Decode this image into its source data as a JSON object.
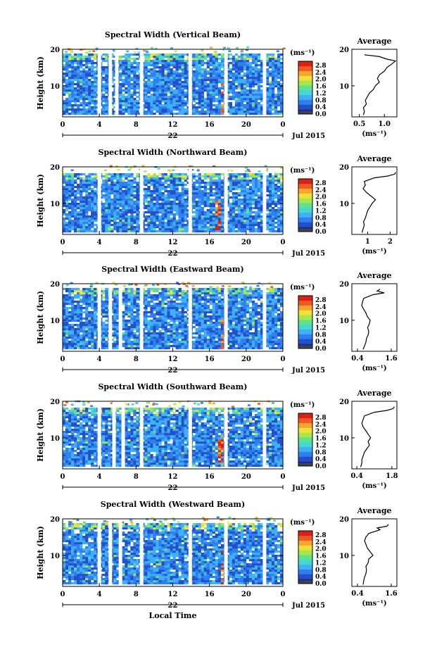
{
  "chart_data": [
    {
      "type": "heatmap",
      "title": "Spectral Width (Vertical Beam)",
      "ylabel": "Height (km)",
      "x_ticks": [
        "0",
        "4",
        "8",
        "12",
        "16",
        "20",
        "0"
      ],
      "y_ticks": [
        "10",
        "20"
      ],
      "xlim": [
        0,
        24
      ],
      "ylim": [
        1.5,
        20
      ],
      "date_center": "22",
      "date_right": "Jul 2015",
      "colorbar": {
        "unit": "(ms⁻¹)",
        "ticks": [
          "2.8",
          "2.4",
          "2.0",
          "1.6",
          "1.2",
          "0.8",
          "0.4",
          "0.0"
        ]
      },
      "gaps_hours": [
        4.0,
        5.2,
        5.9,
        8.6,
        13.9,
        17.8,
        22.0
      ],
      "hot_hours": [
        17.5
      ],
      "top_km": 18.5,
      "average": {
        "title": "Average",
        "xlabel": "(ms⁻¹)",
        "x_ticks": [
          "0.5",
          "1.0"
        ],
        "x_tick_values": [
          0.5,
          1.0
        ],
        "xlim": [
          0.35,
          1.25
        ],
        "y_ticks": [
          "10",
          "20"
        ],
        "profile": [
          [
            2,
            0.58
          ],
          [
            3,
            0.6
          ],
          [
            4,
            0.58
          ],
          [
            5,
            0.64
          ],
          [
            6,
            0.62
          ],
          [
            7,
            0.66
          ],
          [
            8,
            0.7
          ],
          [
            9,
            0.78
          ],
          [
            10,
            0.82
          ],
          [
            11,
            0.9
          ],
          [
            12,
            0.86
          ],
          [
            13,
            0.9
          ],
          [
            14,
            1.0
          ],
          [
            15,
            1.05
          ],
          [
            16,
            1.15
          ],
          [
            16.8,
            1.22
          ],
          [
            17.3,
            1.05
          ],
          [
            18,
            0.9
          ],
          [
            18.5,
            0.6
          ]
        ]
      }
    },
    {
      "type": "heatmap",
      "title": "Spectral Width (Northward Beam)",
      "ylabel": "Height (km)",
      "x_ticks": [
        "0",
        "4",
        "8",
        "12",
        "16",
        "20",
        "0"
      ],
      "y_ticks": [
        "10",
        "20"
      ],
      "xlim": [
        0,
        24
      ],
      "ylim": [
        1.5,
        20
      ],
      "date_center": "22",
      "date_right": "Jul 2015",
      "colorbar": {
        "unit": "(ms⁻¹)",
        "ticks": [
          "2.8",
          "2.4",
          "2.0",
          "1.6",
          "1.2",
          "0.8",
          "0.4",
          "0.0"
        ]
      },
      "gaps_hours": [
        4.0,
        8.6,
        13.9,
        17.8,
        22.0
      ],
      "hot_hours": [
        17.0
      ],
      "top_km": 18.2,
      "average": {
        "title": "Average",
        "xlabel": "(ms⁻¹)",
        "x_ticks": [
          "1",
          "2"
        ],
        "x_tick_values": [
          1,
          2
        ],
        "xlim": [
          0.3,
          2.3
        ],
        "y_ticks": [
          "10",
          "20"
        ],
        "profile": [
          [
            2,
            0.75
          ],
          [
            3,
            0.8
          ],
          [
            4,
            0.85
          ],
          [
            5,
            0.82
          ],
          [
            6,
            0.9
          ],
          [
            7,
            0.95
          ],
          [
            8,
            1.0
          ],
          [
            9,
            1.1
          ],
          [
            10,
            1.2
          ],
          [
            11,
            1.35
          ],
          [
            12,
            1.15
          ],
          [
            13,
            0.95
          ],
          [
            14,
            0.8
          ],
          [
            15,
            0.9
          ],
          [
            16,
            0.85
          ],
          [
            17,
            1.3
          ],
          [
            17.5,
            1.9
          ],
          [
            18,
            2.2
          ],
          [
            18.5,
            2.25
          ]
        ]
      }
    },
    {
      "type": "heatmap",
      "title": "Spectral Width (Eastward Beam)",
      "ylabel": "Height (km)",
      "x_ticks": [
        "0",
        "4",
        "8",
        "12",
        "16",
        "20",
        "0"
      ],
      "y_ticks": [
        "10",
        "20"
      ],
      "xlim": [
        0,
        24
      ],
      "ylim": [
        1.5,
        20
      ],
      "date_center": "22",
      "date_right": "Jul 2015",
      "colorbar": {
        "unit": "(ms⁻¹)",
        "ticks": [
          "2.8",
          "2.4",
          "2.0",
          "1.6",
          "1.2",
          "0.8",
          "0.4",
          "0.0"
        ]
      },
      "gaps_hours": [
        4.0,
        5.2,
        6.3,
        8.6,
        13.9,
        17.8,
        22.0
      ],
      "hot_hours": [
        17.5
      ],
      "top_km": 18.3,
      "average": {
        "title": "Average",
        "xlabel": "(ms⁻¹)",
        "x_ticks": [
          "0.4",
          "1.6"
        ],
        "x_tick_values": [
          0.4,
          1.6
        ],
        "xlim": [
          0.2,
          1.8
        ],
        "y_ticks": [
          "10",
          "20"
        ],
        "profile": [
          [
            2,
            0.6
          ],
          [
            3,
            0.65
          ],
          [
            4,
            0.7
          ],
          [
            5,
            0.72
          ],
          [
            6,
            0.78
          ],
          [
            7,
            0.8
          ],
          [
            8,
            0.76
          ],
          [
            9,
            0.82
          ],
          [
            10,
            0.85
          ],
          [
            11,
            0.75
          ],
          [
            12,
            0.7
          ],
          [
            13,
            0.62
          ],
          [
            14,
            0.55
          ],
          [
            15,
            0.58
          ],
          [
            16,
            0.62
          ],
          [
            17,
            0.95
          ],
          [
            17.5,
            1.35
          ],
          [
            18,
            1.1
          ],
          [
            18.5,
            1.2
          ]
        ]
      }
    },
    {
      "type": "heatmap",
      "title": "Spectral Width (Southward Beam)",
      "ylabel": "Height (km)",
      "x_ticks": [
        "0",
        "4",
        "8",
        "12",
        "16",
        "20",
        "0"
      ],
      "y_ticks": [
        "10",
        "20"
      ],
      "xlim": [
        0,
        24
      ],
      "ylim": [
        1.5,
        20
      ],
      "date_center": "22",
      "date_right": "Jul 2015",
      "colorbar": {
        "unit": "(ms⁻¹)",
        "ticks": [
          "2.8",
          "2.4",
          "2.0",
          "1.6",
          "1.2",
          "0.8",
          "0.4",
          "0.0"
        ]
      },
      "gaps_hours": [
        4.0,
        5.6,
        6.6,
        8.6,
        13.9,
        17.8,
        22.0
      ],
      "hot_hours": [
        17.3
      ],
      "top_km": 18.0,
      "average": {
        "title": "Average",
        "xlabel": "(ms⁻¹)",
        "x_ticks": [
          "0.4",
          "1.8"
        ],
        "x_tick_values": [
          0.4,
          1.8
        ],
        "xlim": [
          0.2,
          2.0
        ],
        "y_ticks": [
          "10",
          "20"
        ],
        "profile": [
          [
            2,
            0.55
          ],
          [
            3,
            0.6
          ],
          [
            4,
            0.6
          ],
          [
            5,
            0.65
          ],
          [
            6,
            0.7
          ],
          [
            7,
            0.8
          ],
          [
            8,
            0.9
          ],
          [
            9,
            0.85
          ],
          [
            10,
            0.95
          ],
          [
            11,
            0.85
          ],
          [
            12,
            0.75
          ],
          [
            13,
            0.65
          ],
          [
            14,
            0.6
          ],
          [
            15,
            0.65
          ],
          [
            16,
            0.7
          ],
          [
            17,
            1.1
          ],
          [
            17.5,
            1.6
          ],
          [
            18,
            1.85
          ],
          [
            18.5,
            1.9
          ]
        ]
      }
    },
    {
      "type": "heatmap",
      "title": "Spectral Width (Westward Beam)",
      "ylabel": "Height (km)",
      "x_ticks": [
        "0",
        "4",
        "8",
        "12",
        "16",
        "20",
        "0"
      ],
      "y_ticks": [
        "10",
        "20"
      ],
      "xlim": [
        0,
        24
      ],
      "ylim": [
        1.5,
        20
      ],
      "date_center": "22",
      "date_right": "Jul 2015",
      "xlabel": "Local Time",
      "colorbar": {
        "unit": "(ms⁻¹)",
        "ticks": [
          "2.8",
          "2.4",
          "2.0",
          "1.6",
          "1.2",
          "0.8",
          "0.4",
          "0.0"
        ]
      },
      "gaps_hours": [
        4.0,
        5.2,
        6.3,
        8.6,
        13.9,
        17.8,
        22.0
      ],
      "hot_hours": [
        17.4
      ],
      "top_km": 18.4,
      "average": {
        "title": "Average",
        "xlabel": "(ms⁻¹)",
        "x_ticks": [
          "0.4",
          "1.6"
        ],
        "x_tick_values": [
          0.4,
          1.6
        ],
        "xlim": [
          0.2,
          1.8
        ],
        "y_ticks": [
          "10",
          "20"
        ],
        "profile": [
          [
            2,
            0.6
          ],
          [
            3,
            0.62
          ],
          [
            4,
            0.65
          ],
          [
            5,
            0.7
          ],
          [
            6,
            0.72
          ],
          [
            7,
            0.7
          ],
          [
            8,
            0.78
          ],
          [
            9,
            0.8
          ],
          [
            10,
            0.95
          ],
          [
            11,
            0.85
          ],
          [
            12,
            0.75
          ],
          [
            13,
            0.7
          ],
          [
            14,
            0.65
          ],
          [
            15,
            0.7
          ],
          [
            16,
            0.8
          ],
          [
            17,
            1.2
          ],
          [
            17.5,
            1.1
          ],
          [
            18,
            1.45
          ],
          [
            18.5,
            1.5
          ]
        ]
      }
    }
  ]
}
